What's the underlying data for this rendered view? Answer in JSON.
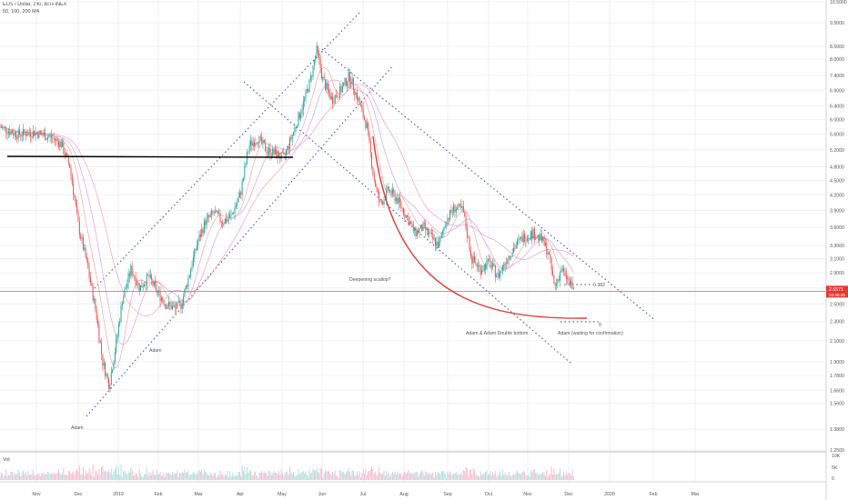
{
  "header": {
    "symbol_line": "EOS / Dollar, 240, BITFINEX",
    "ma_line": "50, 100, 200 MA"
  },
  "volume_label": "Vol",
  "colors": {
    "price_line": "#e53935",
    "candle_up": "#26a69a",
    "candle_down": "#ef5350",
    "ma": "#f48fb1",
    "channel": "#3f3fb0",
    "curve": "#e53935",
    "support": "#000000"
  },
  "chart_data": {
    "type": "candlestick",
    "title": "EOS / Dollar, 240, BITFINEX",
    "x_ticks": [
      "Nov",
      "Dec",
      "2019",
      "Feb",
      "Mar",
      "Apr",
      "May",
      "Jun",
      "Jul",
      "Aug",
      "Sep",
      "Oct",
      "Nov",
      "Dec",
      "2020",
      "Feb",
      "Mar"
    ],
    "y_ticks": [
      "10.5000",
      "9.5000",
      "8.5000",
      "8.0000",
      "7.4000",
      "6.9000",
      "6.4000",
      "6.0000",
      "5.6000",
      "5.2000",
      "4.8000",
      "4.5000",
      "4.2000",
      "3.9000",
      "3.6000",
      "3.3000",
      "3.1000",
      "2.9000",
      "2.7000",
      "2.5000",
      "2.3000",
      "2.1000",
      "1.9000",
      "1.7800",
      "1.6600",
      "1.5600",
      "1.3800",
      "1.2500"
    ],
    "scale": "log",
    "current_price": "2.6571",
    "current_price_sub": "03:46:45",
    "volume_ticks": [
      "10K",
      "5K",
      "0"
    ],
    "annotations": {
      "adam_1": "Adam",
      "adam_2": "Adam",
      "deepening_scallop": "Deepening scallop?",
      "adam_adam": "Adam & Adam Double bottom",
      "adam_3": "Adam",
      "waiting": "(waiting for confirmation)",
      "target": "0.382",
      "zero": "0"
    },
    "price_path": [
      [
        0,
        5.8
      ],
      [
        4,
        5.6
      ],
      [
        8,
        5.65
      ],
      [
        12,
        5.5
      ],
      [
        14,
        5.35
      ],
      [
        16,
        4.8
      ],
      [
        18,
        3.6
      ],
      [
        20,
        3.0
      ],
      [
        22,
        2.4
      ],
      [
        23.5,
        1.9
      ],
      [
        25,
        1.7
      ],
      [
        26.5,
        2.05
      ],
      [
        28,
        2.55
      ],
      [
        30,
        2.95
      ],
      [
        32,
        2.7
      ],
      [
        34,
        2.85
      ],
      [
        36,
        2.65
      ],
      [
        38,
        2.5
      ],
      [
        40,
        2.45
      ],
      [
        41.5,
        2.5
      ],
      [
        43,
        2.8
      ],
      [
        45,
        3.3
      ],
      [
        47,
        3.7
      ],
      [
        49,
        3.85
      ],
      [
        51,
        3.7
      ],
      [
        53,
        3.8
      ],
      [
        55,
        4.2
      ],
      [
        57,
        5.3
      ],
      [
        59,
        5.5
      ],
      [
        61,
        5.2
      ],
      [
        63,
        5.1
      ],
      [
        65,
        5.0
      ],
      [
        67,
        5.6
      ],
      [
        69,
        6.3
      ],
      [
        71,
        7.2
      ],
      [
        72.5,
        8.35
      ],
      [
        74,
        7.2
      ],
      [
        76,
        6.6
      ],
      [
        78,
        6.9
      ],
      [
        80,
        7.4
      ],
      [
        82,
        6.6
      ],
      [
        84,
        5.8
      ],
      [
        85.5,
        4.6
      ],
      [
        87,
        4.0
      ],
      [
        89,
        4.3
      ],
      [
        91,
        4.1
      ],
      [
        93,
        3.8
      ],
      [
        95,
        3.5
      ],
      [
        97,
        3.6
      ],
      [
        99,
        3.4
      ],
      [
        100.5,
        3.3
      ],
      [
        102,
        3.7
      ],
      [
        104,
        3.95
      ],
      [
        106,
        3.9
      ],
      [
        108,
        3.1
      ],
      [
        110,
        2.95
      ],
      [
        112,
        3.05
      ],
      [
        114,
        2.85
      ],
      [
        116,
        3.1
      ],
      [
        118,
        3.3
      ],
      [
        120,
        3.45
      ],
      [
        122,
        3.5
      ],
      [
        124,
        3.4
      ],
      [
        125.5,
        3.2
      ],
      [
        127,
        2.7
      ],
      [
        128.5,
        2.95
      ],
      [
        130,
        2.8
      ],
      [
        131.5,
        2.65
      ]
    ],
    "x_range": [
      0,
      190
    ],
    "y_range": [
      1.25,
      10.5
    ]
  }
}
